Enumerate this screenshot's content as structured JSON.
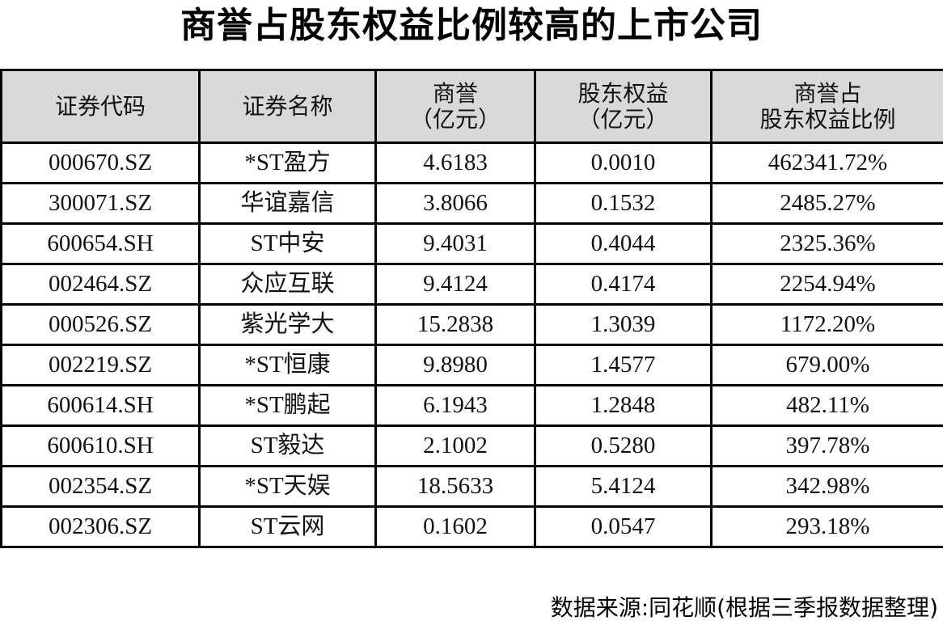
{
  "title": "商誉占股东权益比例较高的上市公司",
  "table": {
    "headers": [
      {
        "line1": "证券代码",
        "line2": ""
      },
      {
        "line1": "证券名称",
        "line2": ""
      },
      {
        "line1": "商誉",
        "line2": "（亿元）"
      },
      {
        "line1": "股东权益",
        "line2": "（亿元）"
      },
      {
        "line1": "商誉占",
        "line2": "股东权益比例"
      }
    ],
    "rows": [
      [
        "000670.SZ",
        "*ST盈方",
        "4.6183",
        "0.0010",
        "462341.72%"
      ],
      [
        "300071.SZ",
        "华谊嘉信",
        "3.8066",
        "0.1532",
        "2485.27%"
      ],
      [
        "600654.SH",
        "ST中安",
        "9.4031",
        "0.4044",
        "2325.36%"
      ],
      [
        "002464.SZ",
        "众应互联",
        "9.4124",
        "0.4174",
        "2254.94%"
      ],
      [
        "000526.SZ",
        "紫光学大",
        "15.2838",
        "1.3039",
        "1172.20%"
      ],
      [
        "002219.SZ",
        "*ST恒康",
        "9.8980",
        "1.4577",
        "679.00%"
      ],
      [
        "600614.SH",
        "*ST鹏起",
        "6.1943",
        "1.2848",
        "482.11%"
      ],
      [
        "600610.SH",
        "ST毅达",
        "2.1002",
        "0.5280",
        "397.78%"
      ],
      [
        "002354.SZ",
        "*ST天娱",
        "18.5633",
        "5.4124",
        "342.98%"
      ],
      [
        "002306.SZ",
        "ST云网",
        "0.1602",
        "0.0547",
        "293.18%"
      ]
    ]
  },
  "footer": "数据来源:同花顺(根据三季报数据整理)",
  "colors": {
    "header_bg": "#d9d9d9",
    "border": "#000000"
  }
}
